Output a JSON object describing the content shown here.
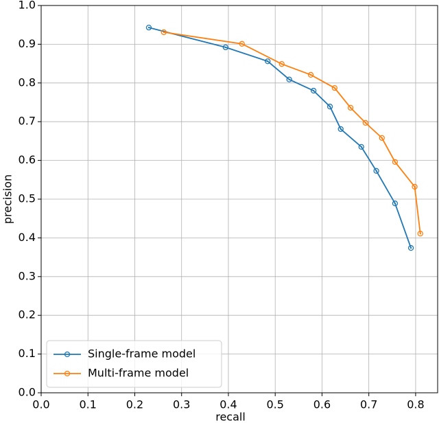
{
  "chart_data": {
    "type": "line",
    "xlabel": "recall",
    "ylabel": "precision",
    "series": [
      {
        "name": "Single-frame model",
        "color": "#1f77b4",
        "x": [
          0.23,
          0.394,
          0.484,
          0.53,
          0.582,
          0.617,
          0.64,
          0.684,
          0.716,
          0.756,
          0.79
        ],
        "values": [
          0.943,
          0.892,
          0.856,
          0.809,
          0.78,
          0.739,
          0.681,
          0.635,
          0.573,
          0.489,
          0.374
        ]
      },
      {
        "name": "Multi-frame model",
        "color": "#ff7f0e",
        "x": [
          0.262,
          0.429,
          0.514,
          0.576,
          0.627,
          0.661,
          0.693,
          0.728,
          0.756,
          0.798,
          0.81
        ],
        "values": [
          0.931,
          0.901,
          0.849,
          0.821,
          0.787,
          0.736,
          0.697,
          0.658,
          0.596,
          0.532,
          0.411
        ]
      }
    ],
    "xlim": [
      0,
      0.847
    ],
    "ylim": [
      0,
      1
    ],
    "xticks": [
      {
        "value": 0,
        "label": "0.0"
      },
      0.1,
      0.2,
      0.3,
      0.4,
      0.5,
      0.6,
      0.7,
      0.8
    ],
    "yticks": [
      {
        "value": 0,
        "label": "0.0"
      },
      0.1,
      0.2,
      0.3,
      0.4,
      0.5,
      0.6,
      0.7,
      0.8,
      0.9,
      {
        "value": 1,
        "label": "1.0"
      }
    ],
    "grid": true,
    "legend": "lower left"
  }
}
